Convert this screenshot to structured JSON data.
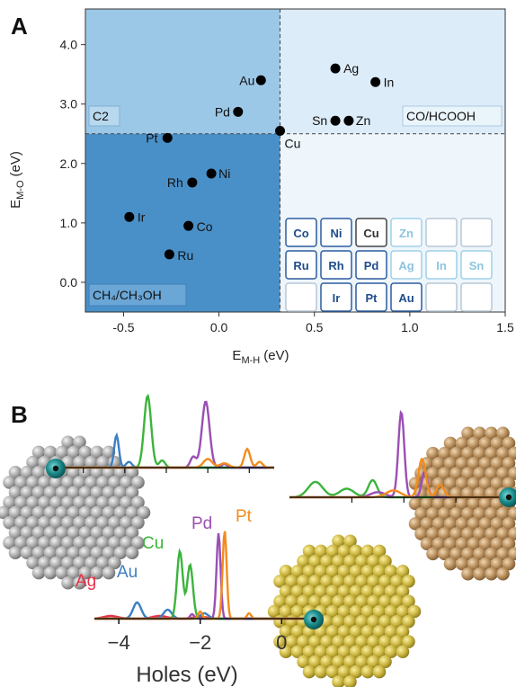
{
  "panels": {
    "a": "A",
    "b": "B"
  },
  "regions": {
    "c2": "C2",
    "co_hcooh": "CO/HCOOH",
    "ch4_ch3oh": "CH₄/CH₃OH"
  },
  "colors": {
    "region_c2": "#9cc8e8",
    "region_co": "#dcecf8",
    "region_ch4": "#4a90c8",
    "region_right_low": "#eef6fc",
    "elements": {
      "Ag": "#e8324a",
      "Au": "#3b7fc4",
      "Cu": "#3cb43c",
      "Pd": "#9b4fb4",
      "Pt": "#f28c1e"
    },
    "adsorbate": "#1a8a8a",
    "cluster_grey": "#9c9c9c",
    "cluster_brown": "#b48a58",
    "cluster_gold": "#c8b23c"
  },
  "chart_data": [
    {
      "type": "scatter",
      "title": "",
      "xlabel": "E",
      "xlabel_sub": "M-H",
      "xlabel_unit": "(eV)",
      "ylabel": "E",
      "ylabel_sub": "M-O",
      "ylabel_unit": "(eV)",
      "xlim": [
        -0.7,
        1.5
      ],
      "ylim": [
        -0.5,
        4.6
      ],
      "xticks": [
        "-0.5",
        "0.0",
        "0.5",
        "1.0",
        "1.5"
      ],
      "xtick_values": [
        -0.5,
        0.0,
        0.5,
        1.0,
        1.5
      ],
      "yticks": [
        "0.0",
        "1.0",
        "2.0",
        "3.0",
        "4.0"
      ],
      "ytick_values": [
        0.0,
        1.0,
        2.0,
        3.0,
        4.0
      ],
      "threshold_x": 0.32,
      "threshold_y": 2.5,
      "points": [
        {
          "label": "Au",
          "x": 0.22,
          "y": 3.4
        },
        {
          "label": "Pd",
          "x": 0.1,
          "y": 2.87
        },
        {
          "label": "Pt",
          "x": -0.27,
          "y": 2.43
        },
        {
          "label": "Ni",
          "x": -0.04,
          "y": 1.83
        },
        {
          "label": "Rh",
          "x": -0.14,
          "y": 1.68
        },
        {
          "label": "Ir",
          "x": -0.47,
          "y": 1.1
        },
        {
          "label": "Co",
          "x": -0.16,
          "y": 0.95
        },
        {
          "label": "Ru",
          "x": -0.26,
          "y": 0.47
        },
        {
          "label": "Cu",
          "x": 0.32,
          "y": 2.55
        },
        {
          "label": "Ag",
          "x": 0.61,
          "y": 3.6
        },
        {
          "label": "In",
          "x": 0.82,
          "y": 3.37
        },
        {
          "label": "Sn",
          "x": 0.61,
          "y": 2.72
        },
        {
          "label": "Zn",
          "x": 0.68,
          "y": 2.72
        }
      ],
      "periodic_table": [
        [
          {
            "symbol": "Co",
            "state": "active"
          },
          {
            "symbol": "Ni",
            "state": "active"
          },
          {
            "symbol": "Cu",
            "state": "dark"
          },
          {
            "symbol": "Zn",
            "state": "faded"
          },
          {
            "symbol": "",
            "state": "empty"
          },
          {
            "symbol": "",
            "state": "empty"
          }
        ],
        [
          {
            "symbol": "Ru",
            "state": "active"
          },
          {
            "symbol": "Rh",
            "state": "active"
          },
          {
            "symbol": "Pd",
            "state": "active"
          },
          {
            "symbol": "Ag",
            "state": "faded"
          },
          {
            "symbol": "In",
            "state": "faded"
          },
          {
            "symbol": "Sn",
            "state": "faded"
          }
        ],
        [
          {
            "symbol": "",
            "state": "empty"
          },
          {
            "symbol": "Ir",
            "state": "active"
          },
          {
            "symbol": "Pt",
            "state": "active"
          },
          {
            "symbol": "Au",
            "state": "active"
          },
          {
            "symbol": "",
            "state": "empty"
          },
          {
            "symbol": "",
            "state": "empty"
          }
        ]
      ]
    },
    {
      "type": "line",
      "title": "",
      "xlabel": "Holes (eV)",
      "xticks": [
        "−4",
        "−2",
        "0"
      ],
      "xtick_values": [
        -4,
        -2,
        0
      ],
      "xlim": [
        -4.6,
        0.7
      ],
      "series_labels": [
        "Ag",
        "Au",
        "Cu",
        "Pd",
        "Pt"
      ],
      "series": [
        {
          "name": "Ag",
          "peaks": [
            [
              -4.2,
              0.03
            ],
            [
              -3.0,
              0.03
            ],
            [
              -2.0,
              0.02
            ]
          ]
        },
        {
          "name": "Au",
          "peaks": [
            [
              -3.55,
              0.18
            ],
            [
              -2.8,
              0.1
            ],
            [
              -1.9,
              0.06
            ]
          ]
        },
        {
          "name": "Cu",
          "peaks": [
            [
              -2.5,
              0.75
            ],
            [
              -2.25,
              0.6
            ]
          ]
        },
        {
          "name": "Pd",
          "peaks": [
            [
              -1.55,
              0.95
            ],
            [
              -2.2,
              0.05
            ]
          ]
        },
        {
          "name": "Pt",
          "peaks": [
            [
              -1.4,
              0.98
            ],
            [
              -2.0,
              0.08
            ],
            [
              -0.8,
              0.06
            ]
          ]
        }
      ]
    }
  ]
}
